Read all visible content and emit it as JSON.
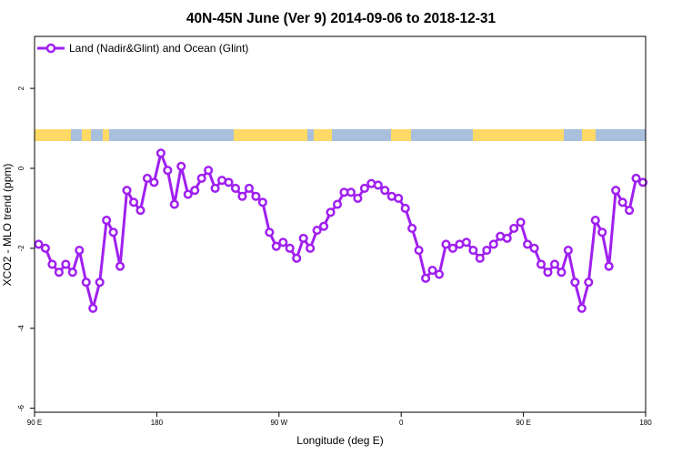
{
  "chart_data": {
    "type": "line",
    "title": "40N-45N June (Ver 9)   2014-09-06 to 2018-12-31",
    "xlabel": "Longitude (deg E)",
    "ylabel": "XCO2 - MLO trend (ppm)",
    "xlim": [
      90,
      540
    ],
    "ylim": [
      -6.1,
      3.3
    ],
    "x_ticks": [
      {
        "value": 90,
        "label": "90 E"
      },
      {
        "value": 180,
        "label": "180"
      },
      {
        "value": 270,
        "label": "90 W"
      },
      {
        "value": 360,
        "label": "0"
      },
      {
        "value": 450,
        "label": "90 E"
      },
      {
        "value": 540,
        "label": "180"
      }
    ],
    "y_ticks": [
      {
        "value": 2,
        "label": "2"
      },
      {
        "value": 0,
        "label": "0"
      },
      {
        "value": -2,
        "label": "-2"
      },
      {
        "value": -4,
        "label": "-4"
      },
      {
        "value": -6,
        "label": "-6"
      }
    ],
    "grid": false,
    "legend_position": "top-left",
    "series": [
      {
        "name": "Land (Nadir&Glint) and Ocean (Glint)",
        "color": "#a020f0",
        "x": [
          93,
          98,
          103,
          108,
          113,
          118,
          123,
          128,
          133,
          138,
          143,
          148,
          153,
          158,
          163,
          168,
          173,
          178,
          183,
          188,
          193,
          198,
          203,
          208,
          213,
          218,
          223,
          228,
          233,
          238,
          243,
          248,
          253,
          258,
          263,
          268,
          273,
          278,
          283,
          288,
          293,
          298,
          303,
          308,
          313,
          318,
          323,
          328,
          333,
          338,
          343,
          348,
          353,
          358,
          363,
          368,
          373,
          378,
          383,
          388,
          393,
          398,
          403,
          408,
          413,
          418,
          423,
          428,
          433,
          438,
          443,
          448,
          453,
          458,
          463,
          468,
          473,
          478,
          483,
          488,
          493,
          498,
          503,
          508,
          513,
          518,
          523,
          528,
          533,
          538
        ],
        "values": [
          -1.9,
          -2.0,
          -2.4,
          -2.6,
          -2.4,
          -2.6,
          -2.05,
          -2.85,
          -3.5,
          -2.85,
          -1.3,
          -1.6,
          -2.45,
          -0.55,
          -0.85,
          -1.05,
          -0.25,
          -0.35,
          0.38,
          -0.05,
          -0.9,
          0.05,
          -0.65,
          -0.55,
          -0.25,
          -0.05,
          -0.5,
          -0.3,
          -0.35,
          -0.5,
          -0.7,
          -0.5,
          -0.7,
          -0.85,
          -1.6,
          -1.95,
          -1.85,
          -2.0,
          -2.25,
          -1.75,
          -2.0,
          -1.55,
          -1.45,
          -1.1,
          -0.9,
          -0.6,
          -0.6,
          -0.75,
          -0.5,
          -0.38,
          -0.42,
          -0.55,
          -0.7,
          -0.75,
          -1.0,
          -1.5,
          -2.05,
          -2.75,
          -2.55,
          -2.65,
          -1.9,
          -2.0,
          -1.9,
          -1.85,
          -2.05,
          -2.25,
          -2.05,
          -1.9,
          -1.7,
          -1.75,
          -1.5,
          -1.35,
          -1.9,
          -2.0,
          -2.4,
          -2.6,
          -2.4,
          -2.6,
          -2.05,
          -2.85,
          -3.5,
          -2.85,
          -1.3,
          -1.6,
          -2.45,
          -0.55,
          -0.85,
          -1.05,
          -0.25,
          -0.35
        ]
      }
    ],
    "land_ocean_band": {
      "land_color": "#ffd966",
      "ocean_color": "#a8bfde"
    }
  }
}
